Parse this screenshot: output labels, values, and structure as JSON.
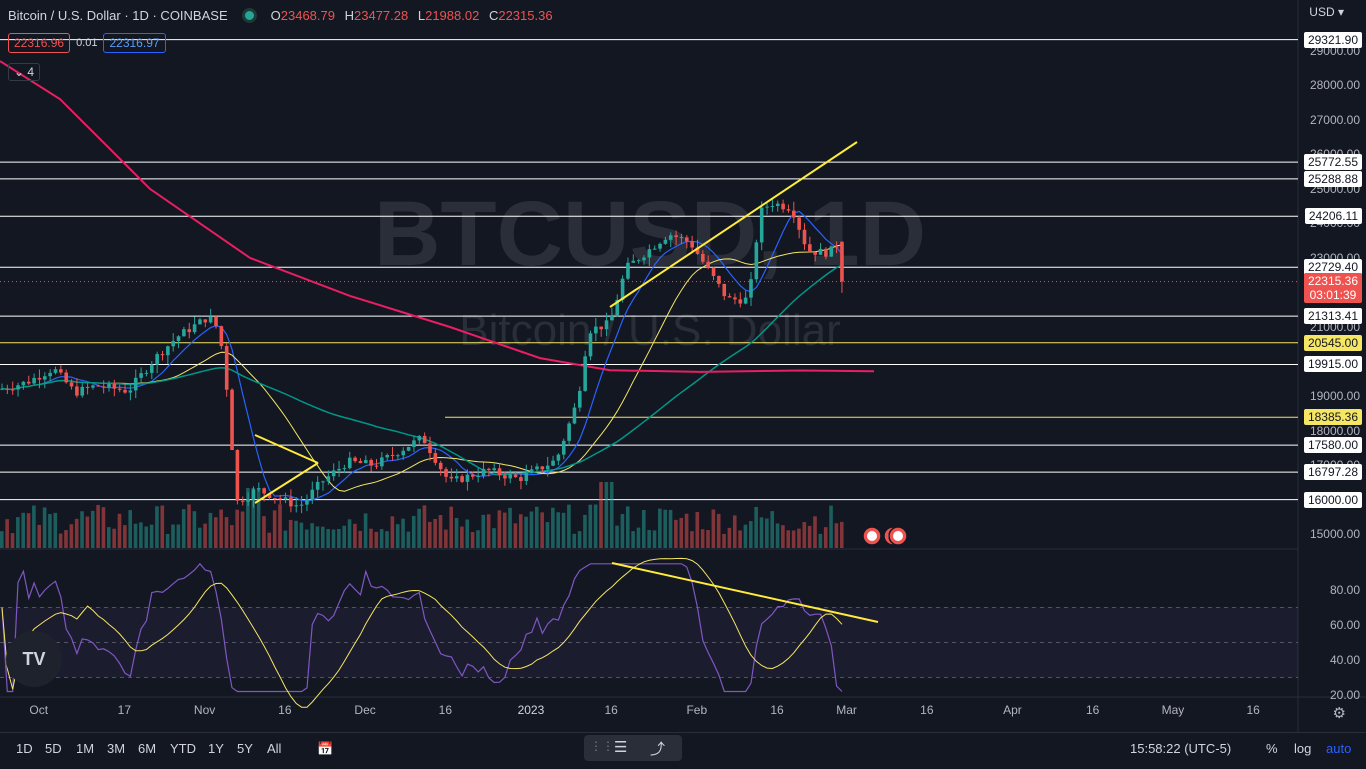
{
  "header": {
    "title": "Bitcoin / U.S. Dollar · 1D · COINBASE",
    "ohlc": [
      {
        "k": "O",
        "v": "23468.79"
      },
      {
        "k": "H",
        "v": "23477.28"
      },
      {
        "k": "L",
        "v": "21988.02"
      },
      {
        "k": "C",
        "v": "22315.36"
      }
    ],
    "sell_price": "22316.96",
    "spread": "0.01",
    "buy_price": "22316.97",
    "indicators_count": "4"
  },
  "watermark": {
    "symbol": "BTCUSD, 1D",
    "name": "Bitcoin / U.S. Dollar"
  },
  "currency": "USD",
  "yaxis": {
    "ticks": [
      "29000.00",
      "28000.00",
      "27000.00",
      "26000.00",
      "25000.00",
      "24000.00",
      "23000.00",
      "22000.00",
      "21000.00",
      "19000.00",
      "18000.00",
      "17000.00",
      "15000.00"
    ],
    "level_tags": [
      {
        "value": 29321.9,
        "text": "29321.90",
        "style": "white"
      },
      {
        "value": 25772.55,
        "text": "25772.55",
        "style": "white"
      },
      {
        "value": 25288.88,
        "text": "25288.88",
        "style": "white"
      },
      {
        "value": 24206.11,
        "text": "24206.11",
        "style": "white"
      },
      {
        "value": 22729.4,
        "text": "22729.40",
        "style": "white"
      },
      {
        "value": 21313.41,
        "text": "21313.41",
        "style": "white"
      },
      {
        "value": 20545.0,
        "text": "20545.00",
        "style": "yellow"
      },
      {
        "value": 19915.0,
        "text": "19915.00",
        "style": "white"
      },
      {
        "value": 18385.36,
        "text": "18385.36",
        "style": "yellow"
      },
      {
        "value": 17580.0,
        "text": "17580.00",
        "style": "white"
      },
      {
        "value": 16797.28,
        "text": "16797.28",
        "style": "white"
      },
      {
        "value": 16000.0,
        "text": "16000.00",
        "style": "white"
      }
    ],
    "last_price": "22315.36",
    "countdown": "03:01:39"
  },
  "rsi_axis": [
    "80.00",
    "60.00",
    "40.00",
    "20.00"
  ],
  "xaxis": [
    "Oct",
    "17",
    "Nov",
    "16",
    "Dec",
    "16",
    "2023",
    "16",
    "Feb",
    "16",
    "Mar",
    "16",
    "Apr",
    "16",
    "May",
    "16"
  ],
  "timeframes": [
    "1D",
    "5D",
    "1M",
    "3M",
    "6M",
    "YTD",
    "1Y",
    "5Y",
    "All"
  ],
  "clock": "15:58:22 (UTC-5)",
  "scale_buttons": {
    "percent": "%",
    "log": "log",
    "auto": "auto"
  },
  "logo_text": "TV",
  "colors": {
    "up": "#26a69a",
    "down": "#ef5350",
    "ma200": "#e91e63",
    "ma_teal": "#009688",
    "ma_yellow": "#f5e663",
    "ma_blue": "#2962ff",
    "rsi": "#7e57c2",
    "trend": "#ffeb3b",
    "accent": "#2962ff"
  },
  "chart_data": {
    "type": "candlestick",
    "symbol": "BTCUSD",
    "interval": "1D",
    "last_candle": {
      "open": 23468.79,
      "high": 23477.28,
      "low": 21988.02,
      "close": 22315.36
    },
    "horizontal_levels": [
      29321.9,
      25772.55,
      25288.88,
      24206.11,
      22729.4,
      21313.41,
      20545.0,
      19915.0,
      18385.36,
      17580.0,
      16797.28,
      16000.0
    ],
    "yrange": [
      14600,
      29600
    ],
    "rsi_range": [
      20,
      100
    ],
    "close_path": [
      {
        "d": "2022-09-26",
        "c": 19200
      },
      {
        "d": "2022-10-01",
        "c": 19400
      },
      {
        "d": "2022-10-06",
        "c": 19800
      },
      {
        "d": "2022-10-10",
        "c": 19100
      },
      {
        "d": "2022-10-14",
        "c": 19300
      },
      {
        "d": "2022-10-20",
        "c": 19150
      },
      {
        "d": "2022-10-25",
        "c": 20100
      },
      {
        "d": "2022-10-29",
        "c": 20700
      },
      {
        "d": "2022-11-04",
        "c": 21300
      },
      {
        "d": "2022-11-06",
        "c": 20900
      },
      {
        "d": "2022-11-08",
        "c": 18500
      },
      {
        "d": "2022-11-09",
        "c": 15900
      },
      {
        "d": "2022-11-13",
        "c": 16300
      },
      {
        "d": "2022-11-21",
        "c": 15800
      },
      {
        "d": "2022-11-25",
        "c": 16500
      },
      {
        "d": "2022-11-30",
        "c": 17100
      },
      {
        "d": "2022-12-05",
        "c": 17000
      },
      {
        "d": "2022-12-14",
        "c": 17800
      },
      {
        "d": "2022-12-19",
        "c": 16500
      },
      {
        "d": "2022-12-26",
        "c": 16850
      },
      {
        "d": "2023-01-01",
        "c": 16600
      },
      {
        "d": "2023-01-08",
        "c": 17150
      },
      {
        "d": "2023-01-12",
        "c": 18900
      },
      {
        "d": "2023-01-14",
        "c": 20900
      },
      {
        "d": "2023-01-18",
        "c": 21100
      },
      {
        "d": "2023-01-21",
        "c": 22700
      },
      {
        "d": "2023-01-29",
        "c": 23700
      },
      {
        "d": "2023-02-02",
        "c": 23450
      },
      {
        "d": "2023-02-09",
        "c": 21800
      },
      {
        "d": "2023-02-13",
        "c": 21800
      },
      {
        "d": "2023-02-15",
        "c": 24300
      },
      {
        "d": "2023-02-17",
        "c": 24600
      },
      {
        "d": "2023-02-21",
        "c": 24450
      },
      {
        "d": "2023-02-24",
        "c": 23200
      },
      {
        "d": "2023-02-28",
        "c": 23150
      },
      {
        "d": "2023-03-02",
        "c": 23470
      },
      {
        "d": "2023-03-03",
        "c": 22315
      }
    ]
  }
}
